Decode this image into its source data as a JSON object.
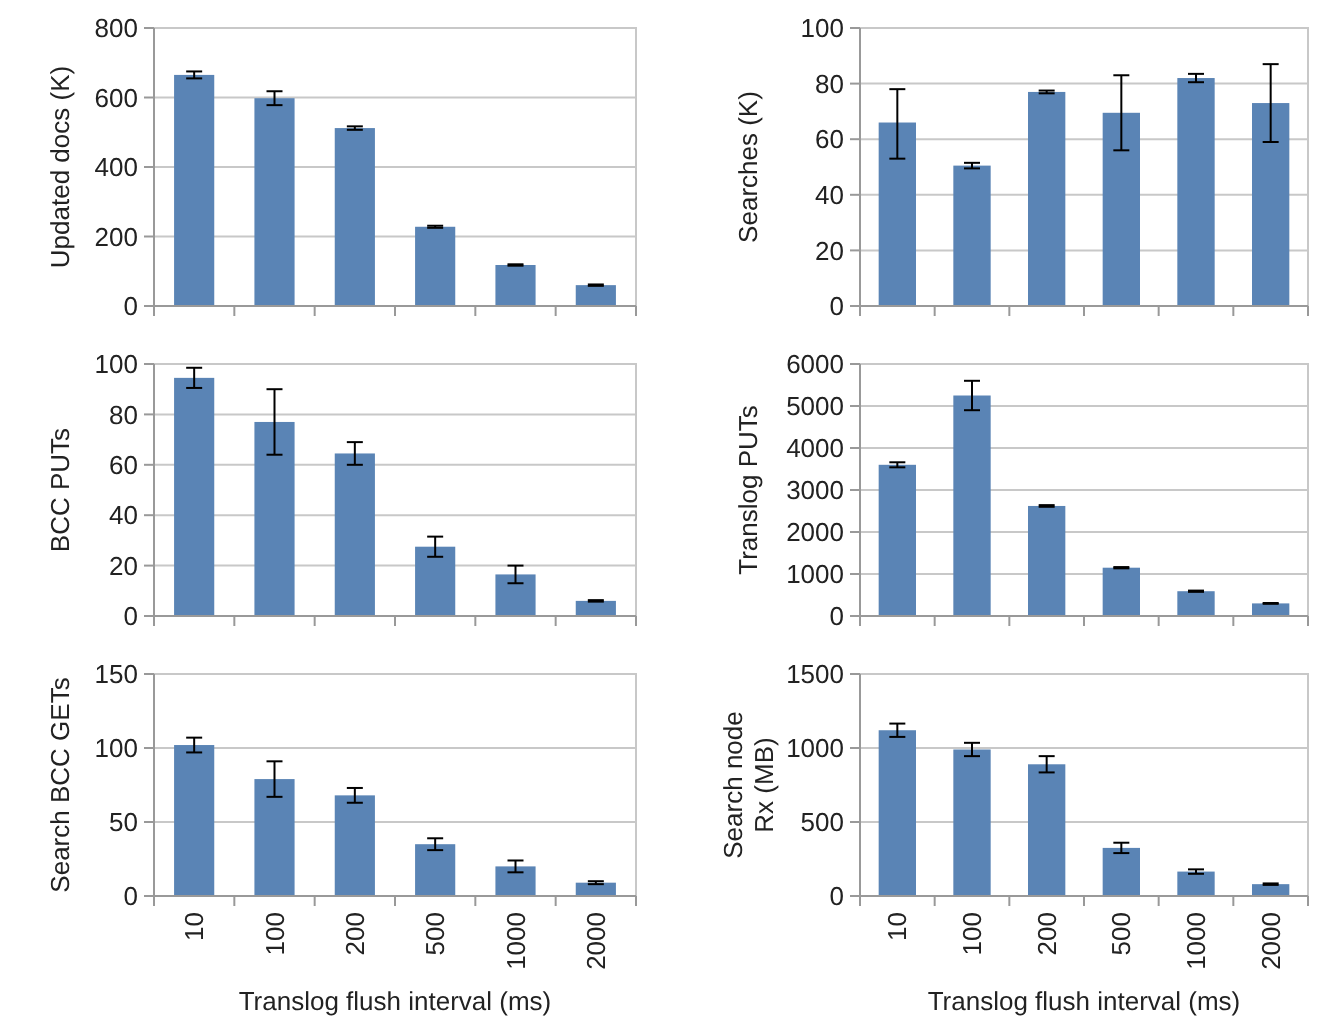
{
  "chart_data": [
    {
      "type": "bar",
      "ylabel": "Updated docs (K)",
      "categories": [
        "10",
        "100",
        "200",
        "500",
        "1000",
        "2000"
      ],
      "tick_labels": "y",
      "color": "#5a84b5",
      "grid": "y",
      "ylim": [
        0,
        800
      ],
      "yticks": [
        0,
        200,
        400,
        600,
        800
      ],
      "values": [
        665,
        598,
        512,
        228,
        118,
        60
      ],
      "errors": [
        10,
        20,
        5,
        3,
        2,
        2
      ]
    },
    {
      "type": "bar",
      "ylabel": "Searches (K)",
      "categories": [
        "10",
        "100",
        "200",
        "500",
        "1000",
        "2000"
      ],
      "tick_labels": "y",
      "color": "#5a84b5",
      "grid": "y",
      "ylim": [
        0,
        100
      ],
      "yticks": [
        0,
        20,
        40,
        60,
        80,
        100
      ],
      "values": [
        66,
        50.5,
        77,
        69.5,
        82,
        73
      ],
      "errors": [
        [
          53,
          78
        ],
        1,
        0.5,
        [
          56,
          83
        ],
        1.5,
        [
          59,
          87
        ]
      ]
    },
    {
      "type": "bar",
      "ylabel": "BCC PUTs",
      "categories": [
        "10",
        "100",
        "200",
        "500",
        "1000",
        "2000"
      ],
      "tick_labels": "y",
      "color": "#5a84b5",
      "grid": "y",
      "ylim": [
        0,
        100
      ],
      "yticks": [
        0,
        20,
        40,
        60,
        80,
        100
      ],
      "values": [
        94.5,
        77,
        64.5,
        27.5,
        16.5,
        6
      ],
      "errors": [
        4,
        [
          64,
          90
        ],
        4.5,
        4,
        3.5,
        0.3
      ]
    },
    {
      "type": "bar",
      "ylabel": "Translog PUTs",
      "categories": [
        "10",
        "100",
        "200",
        "500",
        "1000",
        "2000"
      ],
      "tick_labels": "y",
      "color": "#5a84b5",
      "grid": "y",
      "ylim": [
        0,
        6000
      ],
      "yticks": [
        0,
        1000,
        2000,
        3000,
        4000,
        5000,
        6000
      ],
      "values": [
        3600,
        5250,
        2620,
        1150,
        590,
        300
      ],
      "errors": [
        60,
        350,
        20,
        15,
        15,
        10
      ]
    },
    {
      "type": "bar",
      "ylabel": "Search BCC GETs",
      "xlabel": "Translog flush interval (ms)",
      "categories": [
        "10",
        "100",
        "200",
        "500",
        "1000",
        "2000"
      ],
      "color": "#5a84b5",
      "grid": "y",
      "ylim": [
        0,
        150
      ],
      "yticks": [
        0,
        50,
        100,
        150
      ],
      "values": [
        102,
        79,
        68,
        35,
        20,
        9
      ],
      "errors": [
        5,
        12,
        5,
        4,
        4,
        1
      ]
    },
    {
      "type": "bar",
      "ylabel": "Search node Rx (MB)",
      "xlabel": "Translog flush interval (ms)",
      "categories": [
        "10",
        "100",
        "200",
        "500",
        "1000",
        "2000"
      ],
      "color": "#5a84b5",
      "grid": "y",
      "ylim": [
        0,
        1500
      ],
      "yticks": [
        0,
        500,
        1000,
        1500
      ],
      "values": [
        1120,
        990,
        890,
        325,
        165,
        80
      ],
      "errors": [
        45,
        45,
        55,
        35,
        15,
        5
      ]
    }
  ]
}
